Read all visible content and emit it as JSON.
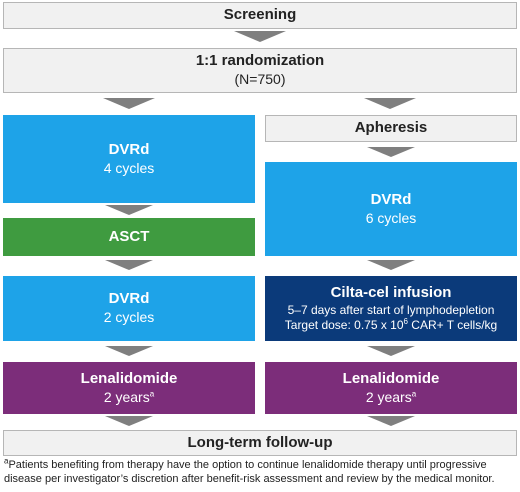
{
  "colors": {
    "grey_box": "#f1f1f1",
    "blue_box": "#1ea3e8",
    "green_box": "#3f9b40",
    "navy_box": "#0b3a7a",
    "purple_box": "#7c2d7a",
    "arrow": "#7f7f7f"
  },
  "screening": "Screening",
  "randomization": {
    "title": "1:1 randomization",
    "n": "(N=750)"
  },
  "left_arm": {
    "dvrd_induction": {
      "title": "DVRd",
      "detail": "4 cycles"
    },
    "asct": "ASCT",
    "dvrd_consolidation": {
      "title": "DVRd",
      "detail": "2 cycles"
    },
    "lenalidomide": {
      "title": "Lenalidomide",
      "detail": "2 years",
      "sup": "a"
    }
  },
  "right_arm": {
    "apheresis": "Apheresis",
    "dvrd_bridging": {
      "title": "DVRd",
      "detail": "6 cycles"
    },
    "cilta_cel": {
      "title": "Cilta-cel infusion",
      "line1": "5–7 days after start of lymphodepletion",
      "line2_pre": "Target dose: 0.75 x 10",
      "line2_sup": "6",
      "line2_post": " CAR+ T cells/kg"
    },
    "lenalidomide": {
      "title": "Lenalidomide",
      "detail": "2 years",
      "sup": "a"
    }
  },
  "follow_up": "Long-term follow-up",
  "footnote": {
    "marker": "a",
    "text": "Patients benefiting from therapy have the option to continue lenalidomide therapy until progressive disease per investigator’s discretion after benefit-risk assessment and review by the medical monitor."
  }
}
